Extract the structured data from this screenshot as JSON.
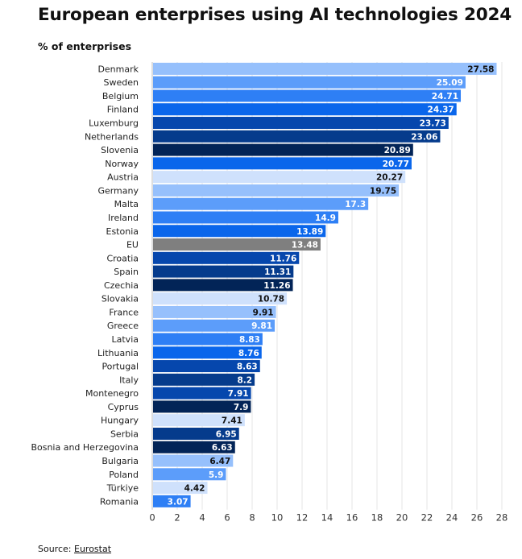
{
  "title": "European enterprises using AI technologies 2024",
  "subtitle": "% of enterprises",
  "source": {
    "label": "Source:",
    "link_text": "Eurostat"
  },
  "colors": {
    "background": "#ffffff",
    "grid": "#e6e6e6",
    "eu_bar": "#7f7f7f",
    "palette": [
      "#96c0fc",
      "#5c9dfa",
      "#2e7ff5",
      "#0a66eb",
      "#0647ad",
      "#053b8c",
      "#022457"
    ]
  },
  "chart_data": {
    "type": "bar",
    "orientation": "horizontal",
    "title": "European enterprises using AI technologies 2024",
    "subtitle": "% of enterprises",
    "xlabel": "",
    "ylabel": "",
    "xlim": [
      0,
      28
    ],
    "xticks": [
      0,
      2,
      4,
      6,
      8,
      10,
      12,
      14,
      16,
      18,
      20,
      22,
      24,
      26,
      28
    ],
    "grid": true,
    "legend": "none",
    "categories": [
      "Denmark",
      "Sweden",
      "Belgium",
      "Finland",
      "Luxemburg",
      "Netherlands",
      "Slovenia",
      "Norway",
      "Austria",
      "Germany",
      "Malta",
      "Ireland",
      "Estonia",
      "EU",
      "Croatia",
      "Spain",
      "Czechia",
      "Slovakia",
      "France",
      "Greece",
      "Latvia",
      "Lithuania",
      "Portugal",
      "Italy",
      "Montenegro",
      "Cyprus",
      "Hungary",
      "Serbia",
      "Bosnia and Herzegovina",
      "Bulgaria",
      "Poland",
      "Türkiye",
      "Romania"
    ],
    "values": [
      27.58,
      25.09,
      24.71,
      24.37,
      23.73,
      23.06,
      20.89,
      20.77,
      20.27,
      19.75,
      17.3,
      14.9,
      13.89,
      13.48,
      11.76,
      11.31,
      11.26,
      10.78,
      9.91,
      9.81,
      8.83,
      8.76,
      8.63,
      8.2,
      7.91,
      7.9,
      7.41,
      6.95,
      6.63,
      6.47,
      5.9,
      4.42,
      3.07
    ],
    "value_labels": [
      "27.58",
      "25.09",
      "24.71",
      "24.37",
      "23.73",
      "23.06",
      "20.89",
      "20.77",
      "20.27",
      "19.75",
      "17.3",
      "14.9",
      "13.89",
      "13.48",
      "11.76",
      "11.31",
      "11.26",
      "10.78",
      "9.91",
      "9.81",
      "8.83",
      "8.76",
      "8.63",
      "8.2",
      "7.91",
      "7.9",
      "7.41",
      "6.95",
      "6.63",
      "6.47",
      "5.9",
      "4.42",
      "3.07"
    ],
    "bar_colors": [
      "#96c0fc",
      "#5c9dfa",
      "#2e7ff5",
      "#0a66eb",
      "#0647ad",
      "#053b8c",
      "#022457",
      "#0a66eb",
      "#cfe1fc",
      "#96c0fc",
      "#5c9dfa",
      "#2e7ff5",
      "#0a66eb",
      "#7f7f7f",
      "#0647ad",
      "#053b8c",
      "#022457",
      "#cfe1fc",
      "#96c0fc",
      "#5c9dfa",
      "#2e7ff5",
      "#0a66eb",
      "#0647ad",
      "#053b8c",
      "#0647ad",
      "#022457",
      "#cfe1fc",
      "#053b8c",
      "#022457",
      "#96c0fc",
      "#5c9dfa",
      "#cfe1fc",
      "#2e7ff5"
    ],
    "label_colors": [
      "#111111",
      "#ffffff",
      "#ffffff",
      "#ffffff",
      "#ffffff",
      "#ffffff",
      "#ffffff",
      "#ffffff",
      "#111111",
      "#111111",
      "#ffffff",
      "#ffffff",
      "#ffffff",
      "#ffffff",
      "#ffffff",
      "#ffffff",
      "#ffffff",
      "#111111",
      "#111111",
      "#ffffff",
      "#ffffff",
      "#ffffff",
      "#ffffff",
      "#ffffff",
      "#ffffff",
      "#ffffff",
      "#111111",
      "#ffffff",
      "#ffffff",
      "#111111",
      "#ffffff",
      "#111111",
      "#ffffff"
    ]
  }
}
